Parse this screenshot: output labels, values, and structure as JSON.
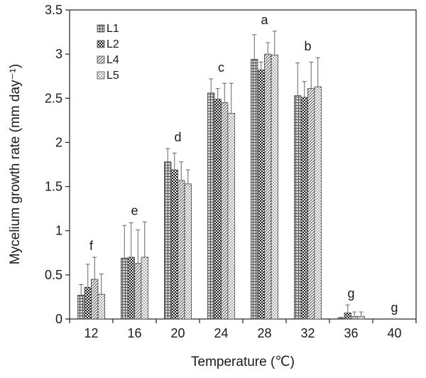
{
  "chart_data": {
    "type": "bar",
    "xlabel": "Temperature (℃)",
    "ylabel": "Mycelium growth rate (mm day⁻¹)",
    "ylim": [
      0,
      3.5
    ],
    "yticks": [
      "0",
      "0.5",
      "1",
      "1.5",
      "2",
      "2.5",
      "3",
      "3.5"
    ],
    "categories": [
      "12",
      "16",
      "20",
      "24",
      "28",
      "32",
      "36",
      "40"
    ],
    "legend_position": "top-left",
    "grid": false,
    "error_bars": true,
    "series": [
      {
        "name": "L1",
        "pattern": "grid",
        "color": "#8a8a8a",
        "values": [
          0.27,
          0.69,
          1.78,
          2.56,
          2.94,
          2.53,
          0.01,
          0
        ],
        "errors": [
          0.12,
          0.37,
          0.15,
          0.16,
          0.28,
          0.37,
          0.01,
          0
        ]
      },
      {
        "name": "L2",
        "pattern": "checker",
        "color": "#2a2a2a",
        "values": [
          0.36,
          0.7,
          1.69,
          2.49,
          2.82,
          2.51,
          0.07,
          0
        ],
        "errors": [
          0.26,
          0.39,
          0.19,
          0.12,
          0.09,
          0.18,
          0.09,
          0
        ]
      },
      {
        "name": "L4",
        "pattern": "diagonal",
        "color": "#9a9a9a",
        "values": [
          0.45,
          0.63,
          1.57,
          2.45,
          3.0,
          2.61,
          0.03,
          0
        ],
        "errors": [
          0.25,
          0.38,
          0.21,
          0.22,
          0.13,
          0.3,
          0.05,
          0
        ]
      },
      {
        "name": "L5",
        "pattern": "dots",
        "color": "#d2d2d2",
        "values": [
          0.28,
          0.7,
          1.53,
          2.33,
          2.99,
          2.63,
          0.03,
          0
        ],
        "errors": [
          0.23,
          0.4,
          0.16,
          0.34,
          0.27,
          0.33,
          0.05,
          0
        ]
      }
    ],
    "annotations": [
      "f",
      "e",
      "d",
      "c",
      "a",
      "b",
      "g",
      "g"
    ]
  }
}
